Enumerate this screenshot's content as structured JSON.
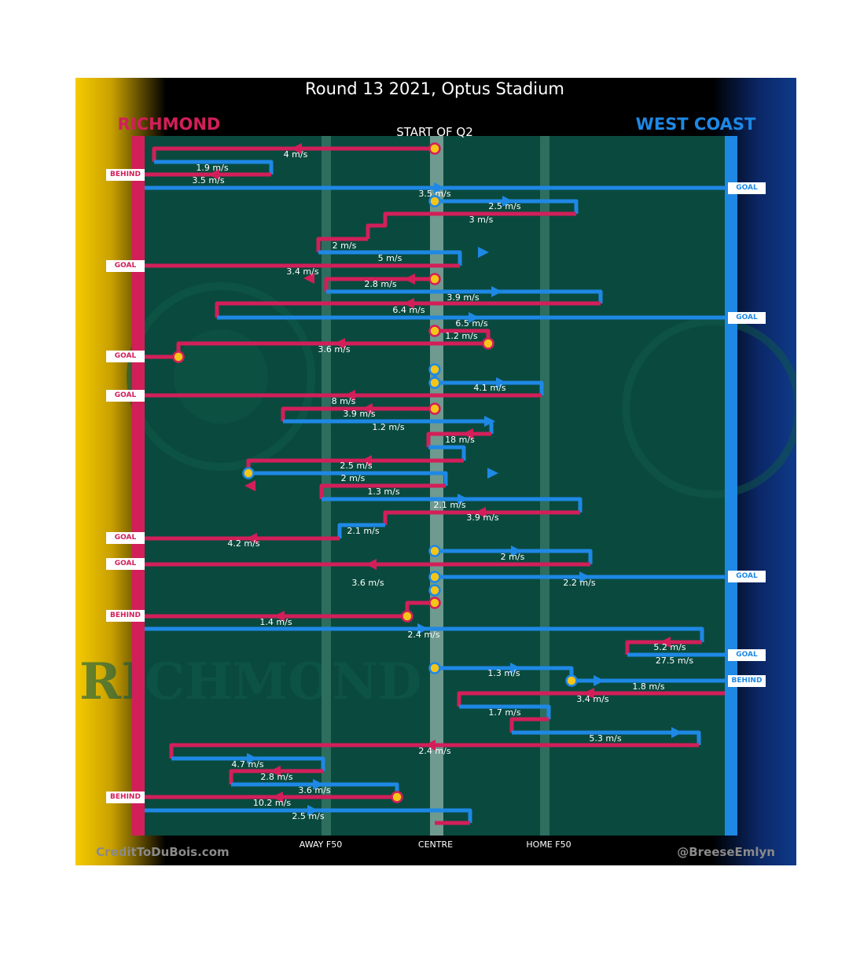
{
  "header": {
    "title": "Round 13 2021, Optus Stadium",
    "left_team": "RICHMOND",
    "right_team": "WEST COAST",
    "quarter_label": "START OF Q2"
  },
  "footer": {
    "credit_left": "CreditToDuBois.com",
    "credit_right": "@BreeseEmlyn",
    "zone_labels": [
      "AWAY F50",
      "CENTRE",
      "HOME F50"
    ]
  },
  "colors": {
    "richmond": "#d21f5a",
    "west_coast": "#1e88e5",
    "field": "#0a4a3e",
    "ball": "#f5c518",
    "left_gradient": "#f5cb00",
    "right_gradient": "#0d2f7a"
  },
  "watermark_text": "RICHMOND",
  "score_tags": [
    {
      "team": "richmond",
      "text": "BEHIND"
    },
    {
      "team": "west_coast",
      "text": "GOAL"
    },
    {
      "team": "richmond",
      "text": "GOAL"
    },
    {
      "team": "west_coast",
      "text": "GOAL"
    },
    {
      "team": "richmond",
      "text": "GOAL"
    },
    {
      "team": "richmond",
      "text": "GOAL"
    },
    {
      "team": "richmond",
      "text": "GOAL"
    },
    {
      "team": "richmond",
      "text": "GOAL"
    },
    {
      "team": "west_coast",
      "text": "GOAL"
    },
    {
      "team": "richmond",
      "text": "BEHIND"
    },
    {
      "team": "west_coast",
      "text": "GOAL"
    },
    {
      "team": "west_coast",
      "text": "BEHIND"
    },
    {
      "team": "richmond",
      "text": "BEHIND"
    }
  ],
  "speed_labels": [
    "4 m/s",
    "1.9 m/s",
    "3.5 m/s",
    "3.5 m/s",
    "2.5 m/s",
    "3 m/s",
    "2 m/s",
    "5 m/s",
    "3.4 m/s",
    "2.8 m/s",
    "3.9 m/s",
    "6.4 m/s",
    "6.5 m/s",
    "1.2 m/s",
    "3.6 m/s",
    "4.1 m/s",
    "8 m/s",
    "3.9 m/s",
    "1.2 m/s",
    "18 m/s",
    "2.5 m/s",
    "2 m/s",
    "1.3 m/s",
    "2.1 m/s",
    "3.9 m/s",
    "2.1 m/s",
    "4.2 m/s",
    "2 m/s",
    "3.6 m/s",
    "2.2 m/s",
    "1.4 m/s",
    "2.4 m/s",
    "5.2 m/s",
    "27.5 m/s",
    "1.3 m/s",
    "1.8 m/s",
    "3.4 m/s",
    "1.7 m/s",
    "5.3 m/s",
    "2.4 m/s",
    "4.7 m/s",
    "2.8 m/s",
    "3.6 m/s",
    "10.2 m/s",
    "2.5 m/s"
  ]
}
